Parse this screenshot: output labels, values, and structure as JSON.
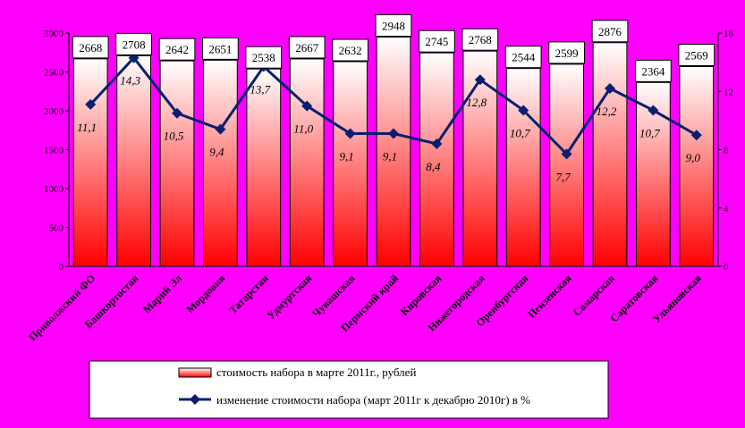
{
  "chart_data": {
    "type": "bar",
    "categories": [
      "Приволжский ФО",
      "Башкортостан",
      "Марий Эл",
      "Мордовия",
      "Татарстан",
      "Удмуртская",
      "Чувашская",
      "Пермский край",
      "Кировская",
      "Нижегородская",
      "Оренбургская",
      "Пензенская",
      "Самарская",
      "Саратовская",
      "Ульяновская"
    ],
    "series": [
      {
        "name": "стоимость набора в марте 2011г., рублей",
        "type": "bar",
        "axis": "left",
        "values": [
          2668,
          2708,
          2642,
          2651,
          2538,
          2667,
          2632,
          2948,
          2745,
          2768,
          2544,
          2599,
          2876,
          2364,
          2569
        ]
      },
      {
        "name": "изменение стоимости набора (март 2011г к декабрю 2010г) в %",
        "type": "line",
        "axis": "right",
        "values": [
          11.1,
          14.3,
          10.5,
          9.4,
          13.7,
          11.0,
          9.1,
          9.1,
          8.4,
          12.8,
          10.7,
          7.7,
          12.2,
          10.7,
          9.0
        ]
      }
    ],
    "bar_labels": [
      "2668",
      "2708",
      "2642",
      "2651",
      "2538",
      "2667",
      "2632",
      "2948",
      "2745",
      "2768",
      "2544",
      "2599",
      "2876",
      "2364",
      "2569"
    ],
    "pct_labels": [
      "11,1",
      "14,3",
      "10,5",
      "9,4",
      "13,7",
      "11,0",
      "9,1",
      "9,1",
      "8,4",
      "12,8",
      "10,7",
      "7,7",
      "12,2",
      "10,7",
      "9,0"
    ],
    "y_left": {
      "min": 0,
      "max": 3000,
      "ticks": [
        0,
        500,
        1000,
        1500,
        2000,
        2500,
        3000
      ]
    },
    "y_right": {
      "min": 0,
      "max": 16,
      "ticks": [
        0,
        4,
        8,
        12,
        16
      ]
    },
    "legend_position": "bottom",
    "colors": {
      "background": "#ff00ff",
      "bar_top": "#ffffff",
      "bar_bottom": "#ff0000",
      "line": "#0a1f6e"
    }
  }
}
